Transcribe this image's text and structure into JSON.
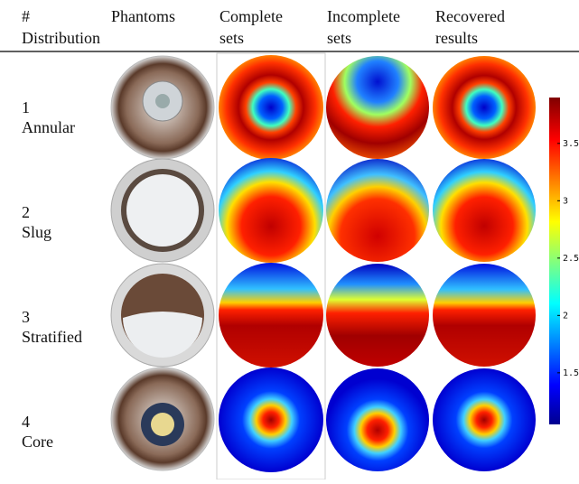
{
  "header": [
    {
      "lines": [
        "#",
        "Distribution"
      ]
    },
    {
      "lines": [
        "Phantoms"
      ]
    },
    {
      "lines": [
        "Complete",
        "sets"
      ]
    },
    {
      "lines": [
        "Incomplete",
        "sets"
      ]
    },
    {
      "lines": [
        "Recovered",
        "results"
      ]
    }
  ],
  "rows": [
    {
      "number": "1",
      "distribution": "Annular"
    },
    {
      "number": "2",
      "distribution": "Slug"
    },
    {
      "number": "3",
      "distribution": "Stratified"
    },
    {
      "number": "4",
      "distribution": "Core"
    }
  ],
  "colorbar": {
    "lim": [
      1.05,
      3.9
    ],
    "ticks": [
      1.5,
      2,
      2.5,
      3,
      3.5
    ]
  }
}
